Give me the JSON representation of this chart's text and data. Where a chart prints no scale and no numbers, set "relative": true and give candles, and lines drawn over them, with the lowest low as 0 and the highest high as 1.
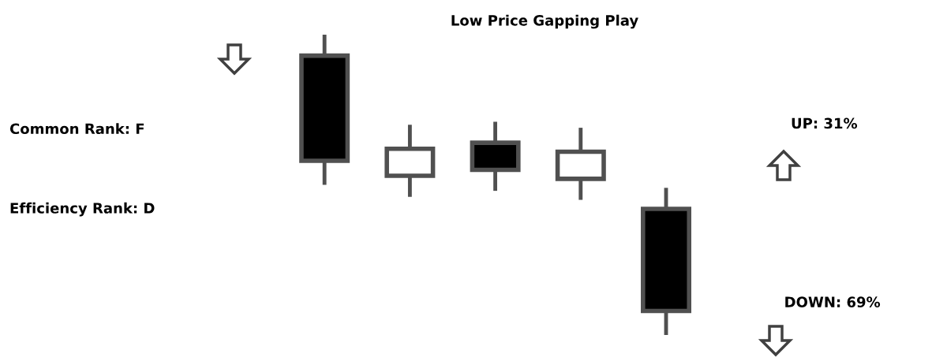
{
  "chart_data": {
    "type": "candlestick",
    "title": "Low Price Gapping Play",
    "relative": true,
    "categories": [
      null,
      null,
      null,
      null,
      null
    ],
    "ohlc": [
      [
        0.93,
        1.0,
        0.5,
        0.58
      ],
      [
        0.53,
        0.7,
        0.46,
        0.62
      ],
      [
        0.64,
        0.71,
        0.48,
        0.55
      ],
      [
        0.52,
        0.69,
        0.45,
        0.61
      ],
      [
        0.42,
        0.49,
        0.0,
        0.08
      ]
    ],
    "annotations": [
      "Common Rank: F",
      "Efficiency Rank: D",
      "UP: 31%",
      "DOWN: 69%"
    ]
  }
}
